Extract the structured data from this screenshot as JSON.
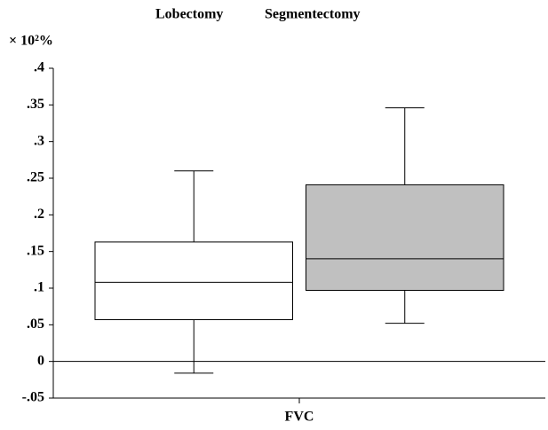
{
  "chart_data": {
    "type": "box",
    "y_label": "× 10²%",
    "categories": [
      "FVC"
    ],
    "series": [
      {
        "name": "Lobectomy",
        "color": "#ffffff",
        "values": [
          [
            -0.016,
            0.057,
            0.108,
            0.163,
            0.26
          ]
        ]
      },
      {
        "name": "Segmentectomy",
        "color": "#c0c0c0",
        "values": [
          [
            0.052,
            0.097,
            0.14,
            0.241,
            0.346
          ]
        ]
      }
    ],
    "ylim": [
      -0.05,
      0.4
    ],
    "yticks": [
      {
        "value": -0.05,
        "label": "-.05"
      },
      0,
      {
        "value": 0.05,
        "label": ".05"
      },
      {
        "value": 0.1,
        "label": ".1"
      },
      {
        "value": 0.15,
        "label": ".15"
      },
      {
        "value": 0.2,
        "label": ".2"
      },
      {
        "value": 0.25,
        "label": ".25"
      },
      {
        "value": 0.3,
        "label": ".3"
      },
      {
        "value": 0.35,
        "label": ".35"
      },
      {
        "value": 0.4,
        "label": ".4"
      }
    ],
    "zero_line": true
  }
}
